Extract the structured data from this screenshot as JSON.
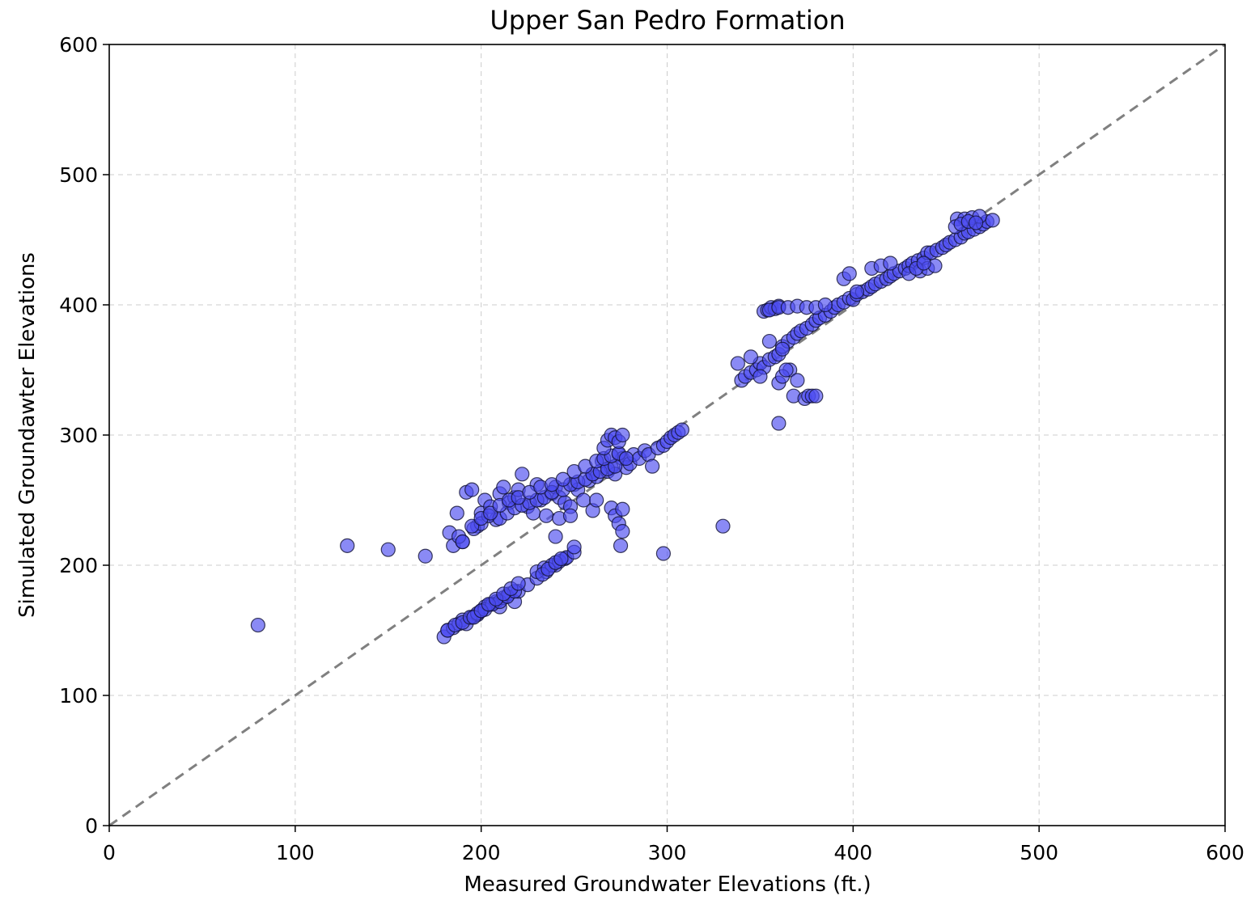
{
  "chart_data": {
    "type": "scatter",
    "title": "Upper San Pedro Formation",
    "xlabel": "Measured Groundwater Elevations (ft.)",
    "ylabel": "Simulated Groundawter Elevations",
    "xlim": [
      0,
      600
    ],
    "ylim": [
      0,
      600
    ],
    "xticks": [
      0,
      100,
      200,
      300,
      400,
      500,
      600
    ],
    "yticks": [
      0,
      100,
      200,
      300,
      400,
      500,
      600
    ],
    "grid": true,
    "reference_line": "1:1",
    "colors": {
      "marker_fill": "#4b4bf0",
      "marker_edge": "#111133",
      "reference_line": "#808080",
      "grid": "#cccccc"
    },
    "series": [
      {
        "x": [
          80,
          128,
          150,
          170,
          187,
          183,
          185,
          190,
          192,
          195,
          198,
          200,
          202,
          205,
          208,
          210,
          212,
          215,
          218,
          220,
          222,
          225,
          228,
          230,
          232,
          235,
          238,
          240,
          242,
          245,
          248,
          250,
          252,
          255,
          258,
          260,
          262,
          265,
          268,
          270,
          272,
          274,
          276,
          278,
          280,
          282,
          285,
          288,
          290,
          292,
          295,
          298,
          300,
          302,
          304,
          306,
          308,
          188,
          196,
          200,
          204,
          210,
          214,
          218,
          222,
          226,
          230,
          234,
          238,
          244,
          248,
          252,
          256,
          260,
          264,
          268,
          272,
          190,
          195,
          200,
          205,
          210,
          215,
          220,
          226,
          232,
          238,
          244,
          250,
          256,
          262,
          266,
          270,
          274,
          180,
          182,
          185,
          188,
          190,
          192,
          195,
          198,
          200,
          202,
          205,
          208,
          210,
          212,
          215,
          218,
          220,
          225,
          230,
          235,
          240,
          245,
          182,
          186,
          190,
          194,
          198,
          202,
          206,
          210,
          214,
          218,
          196,
          200,
          204,
          208,
          212,
          216,
          220,
          230,
          234,
          238,
          242,
          246,
          250,
          233,
          236,
          240,
          243,
          240,
          242,
          248,
          250,
          260,
          262,
          266,
          268,
          270,
          272,
          274,
          276,
          278,
          270,
          272,
          274,
          276,
          275,
          276,
          298,
          330,
          340,
          342,
          345,
          348,
          350,
          352,
          355,
          358,
          360,
          362,
          365,
          368,
          370,
          372,
          375,
          378,
          380,
          382,
          385,
          388,
          390,
          392,
          395,
          398,
          400,
          402,
          405,
          408,
          410,
          412,
          415,
          418,
          420,
          422,
          425,
          428,
          430,
          432,
          435,
          438,
          440,
          338,
          345,
          350,
          355,
          360,
          362,
          366,
          370,
          352,
          354,
          356,
          358,
          360,
          355,
          360,
          365,
          370,
          375,
          380,
          385,
          360,
          368,
          374,
          376,
          378,
          380,
          362,
          364,
          395,
          398,
          402,
          410,
          415,
          420,
          442,
          445,
          448,
          450,
          452,
          455,
          458,
          460,
          462,
          465,
          468,
          470,
          472,
          475,
          456,
          460,
          464,
          468,
          455,
          458,
          462,
          466,
          436,
          440,
          444,
          430,
          434,
          438
        ],
        "y": [
          154,
          215,
          212,
          207,
          240,
          225,
          215,
          218,
          256,
          258,
          230,
          240,
          250,
          245,
          235,
          255,
          260,
          248,
          252,
          258,
          270,
          245,
          240,
          262,
          250,
          238,
          255,
          260,
          252,
          248,
          245,
          262,
          258,
          250,
          265,
          270,
          268,
          280,
          272,
          275,
          270,
          285,
          282,
          275,
          278,
          285,
          282,
          288,
          285,
          276,
          290,
          292,
          295,
          298,
          300,
          302,
          304,
          222,
          228,
          232,
          238,
          236,
          240,
          244,
          246,
          248,
          250,
          252,
          256,
          258,
          262,
          264,
          266,
          270,
          272,
          274,
          276,
          218,
          230,
          236,
          240,
          246,
          250,
          252,
          256,
          260,
          262,
          266,
          272,
          276,
          280,
          282,
          284,
          286,
          145,
          150,
          152,
          155,
          158,
          155,
          160,
          162,
          165,
          168,
          170,
          172,
          168,
          175,
          178,
          172,
          180,
          185,
          190,
          195,
          200,
          205,
          150,
          154,
          156,
          160,
          163,
          166,
          170,
          172,
          176,
          180,
          160,
          165,
          170,
          174,
          178,
          182,
          186,
          195,
          198,
          200,
          203,
          206,
          210,
          193,
          197,
          202,
          205,
          222,
          236,
          238,
          214,
          242,
          250,
          290,
          296,
          300,
          298,
          295,
          300,
          282,
          244,
          238,
          232,
          226,
          215,
          243,
          209,
          230,
          342,
          345,
          348,
          350,
          355,
          352,
          358,
          360,
          362,
          368,
          372,
          375,
          378,
          380,
          382,
          385,
          388,
          390,
          392,
          395,
          398,
          400,
          402,
          405,
          404,
          408,
          410,
          412,
          414,
          416,
          418,
          420,
          422,
          424,
          426,
          428,
          430,
          432,
          434,
          436,
          440,
          355,
          360,
          345,
          372,
          340,
          366,
          350,
          342,
          395,
          396,
          398,
          397,
          399,
          396,
          398,
          398,
          399,
          398,
          398,
          400,
          309,
          330,
          328,
          330,
          330,
          330,
          345,
          350,
          420,
          424,
          410,
          428,
          430,
          432,
          440,
          442,
          444,
          446,
          448,
          450,
          452,
          455,
          456,
          458,
          460,
          462,
          464,
          465,
          466,
          466,
          467,
          468,
          460,
          462,
          464,
          463,
          426,
          428,
          430,
          424,
          428,
          432
        ]
      }
    ]
  }
}
